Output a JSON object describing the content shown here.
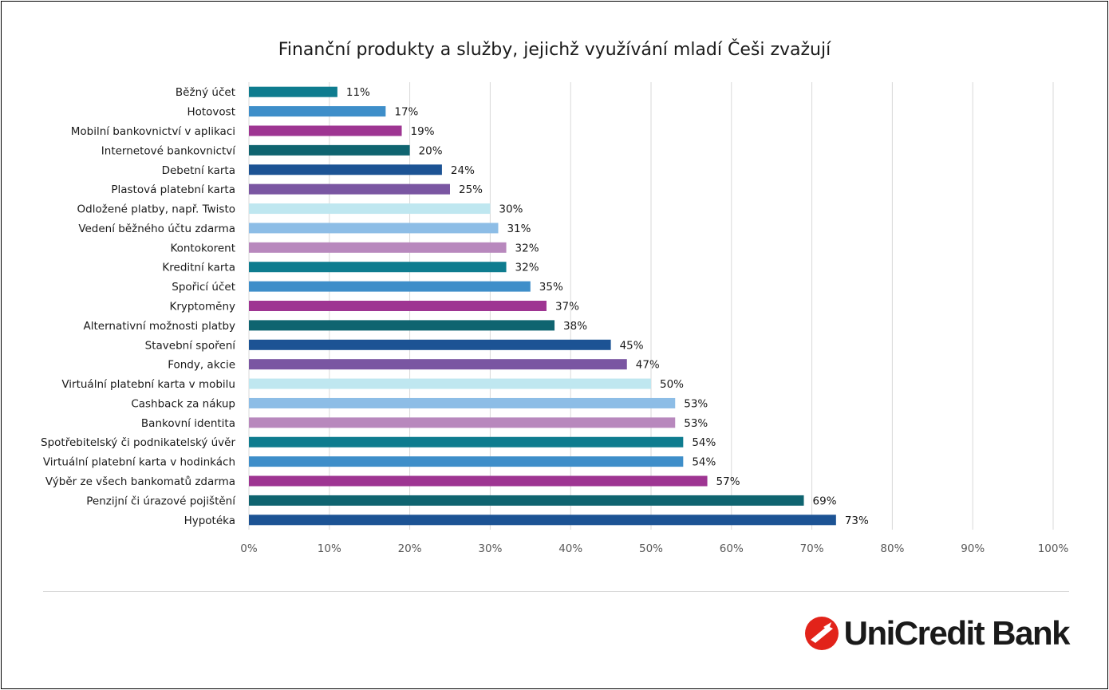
{
  "chart_data": {
    "type": "bar",
    "orientation": "horizontal",
    "title": "Finanční produkty a služby, jejichž využívání mladí Češi zvažují",
    "xlabel": "",
    "ylabel": "",
    "xlim": [
      0,
      100
    ],
    "x_ticks": [
      "0%",
      "10%",
      "20%",
      "30%",
      "40%",
      "50%",
      "60%",
      "70%",
      "80%",
      "90%",
      "100%"
    ],
    "grid": "vertical",
    "legend": "none",
    "value_suffix": "%",
    "categories": [
      "Běžný účet",
      "Hotovost",
      "Mobilní bankovnictví v aplikaci",
      "Internetové bankovnictví",
      "Debetní karta",
      "Plastová platební karta",
      "Odložené platby, např. Twisto",
      "Vedení běžného účtu zdarma",
      "Kontokorent",
      "Kreditní karta",
      "Spořicí účet",
      "Kryptoměny",
      "Alternativní možnosti platby",
      "Stavební spoření",
      "Fondy, akcie",
      "Virtuální platební karta v mobilu",
      "Cashback za nákup",
      "Bankovní identita",
      "Spotřebitelský či podnikatelský úvěr",
      "Virtuální platební karta v hodinkách",
      "Výběr ze všech bankomatů zdarma",
      "Penzijní či úrazové pojištění",
      "Hypotéka"
    ],
    "values": [
      11,
      17,
      19,
      20,
      24,
      25,
      30,
      31,
      32,
      32,
      35,
      37,
      38,
      45,
      47,
      50,
      53,
      53,
      54,
      54,
      57,
      69,
      73
    ],
    "colors": [
      "#0e7c8f",
      "#3e8ec9",
      "#9e3592",
      "#0f6470",
      "#1c5394",
      "#7a56a2",
      "#bfe7f0",
      "#8dbde6",
      "#b888bd",
      "#0e7c8f",
      "#3e8ec9",
      "#9e3592",
      "#0f6470",
      "#1c5394",
      "#7a56a2",
      "#bfe7f0",
      "#8dbde6",
      "#b888bd",
      "#0e7c8f",
      "#3e8ec9",
      "#9e3592",
      "#0f6470",
      "#1c5394"
    ],
    "grid_color": "#d9d9d9"
  },
  "brand": {
    "name": "UniCredit Bank",
    "logo_icon": "unicredit-logo-icon",
    "logo_color": "#e2231a"
  }
}
